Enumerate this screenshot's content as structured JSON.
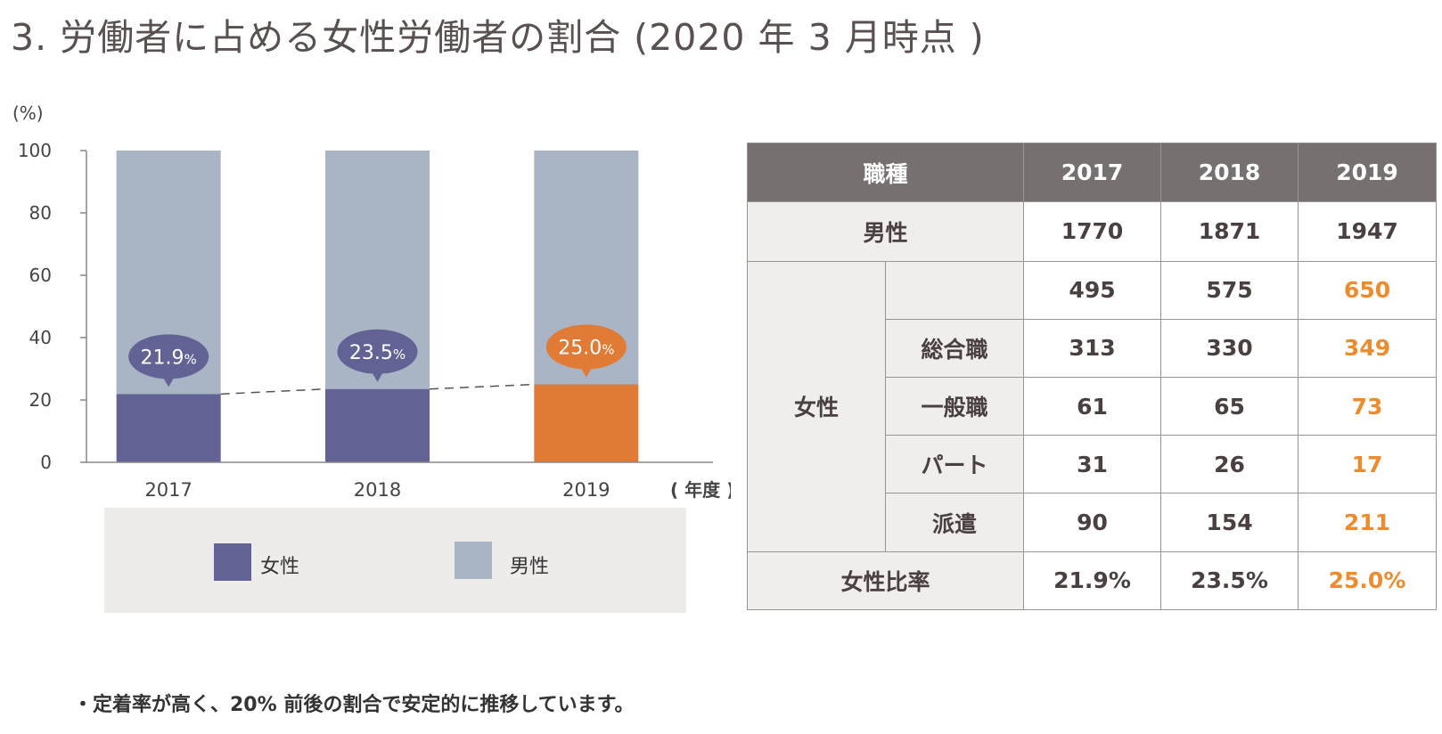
{
  "title": "3. 労働者に占める女性労働者の割合 (2020 年 3 月時点 )",
  "chart_data": {
    "type": "bar",
    "stacked": true,
    "categories": [
      "2017",
      "2018",
      "2019"
    ],
    "series": [
      {
        "name": "女性",
        "values": [
          21.9,
          23.5,
          25.0
        ]
      },
      {
        "name": "男性",
        "values": [
          78.1,
          76.5,
          75.0
        ]
      }
    ],
    "bubble_labels": [
      "21.9",
      "23.5",
      "25.0"
    ],
    "bubble_unit": "%",
    "ylim": [
      0,
      100
    ],
    "yticks": [
      "0",
      "20",
      "40",
      "60",
      "80",
      "100"
    ],
    "yunit": "(%)",
    "xunit": "( 年度 )",
    "trend_line": "dashed",
    "highlight_category": "2019",
    "colors": {
      "female": "#626394",
      "male": "#a9b4c5",
      "highlight": "#e07a34"
    },
    "legend": [
      "女性",
      "男性"
    ],
    "legend_position": "bottom"
  },
  "table": {
    "header": [
      "職種",
      "2017",
      "2018",
      "2019"
    ],
    "male_label": "男性",
    "male_values": [
      "1770",
      "1871",
      "1947"
    ],
    "female_label": "女性",
    "female_total": [
      "495",
      "575",
      "650"
    ],
    "female_rows": [
      {
        "label": "総合職",
        "values": [
          "313",
          "330",
          "349"
        ]
      },
      {
        "label": "一般職",
        "values": [
          "61",
          "65",
          "73"
        ]
      },
      {
        "label": "パート",
        "values": [
          "31",
          "26",
          "17"
        ]
      },
      {
        "label": "派遣",
        "values": [
          "90",
          "154",
          "211"
        ]
      }
    ],
    "ratio_label": "女性比率",
    "ratio_values": [
      "21.9%",
      "23.5%",
      "25.0%"
    ],
    "highlight_color": "#ee8b2c"
  },
  "note": "・定着率が高く、20% 前後の割合で安定的に推移しています。"
}
